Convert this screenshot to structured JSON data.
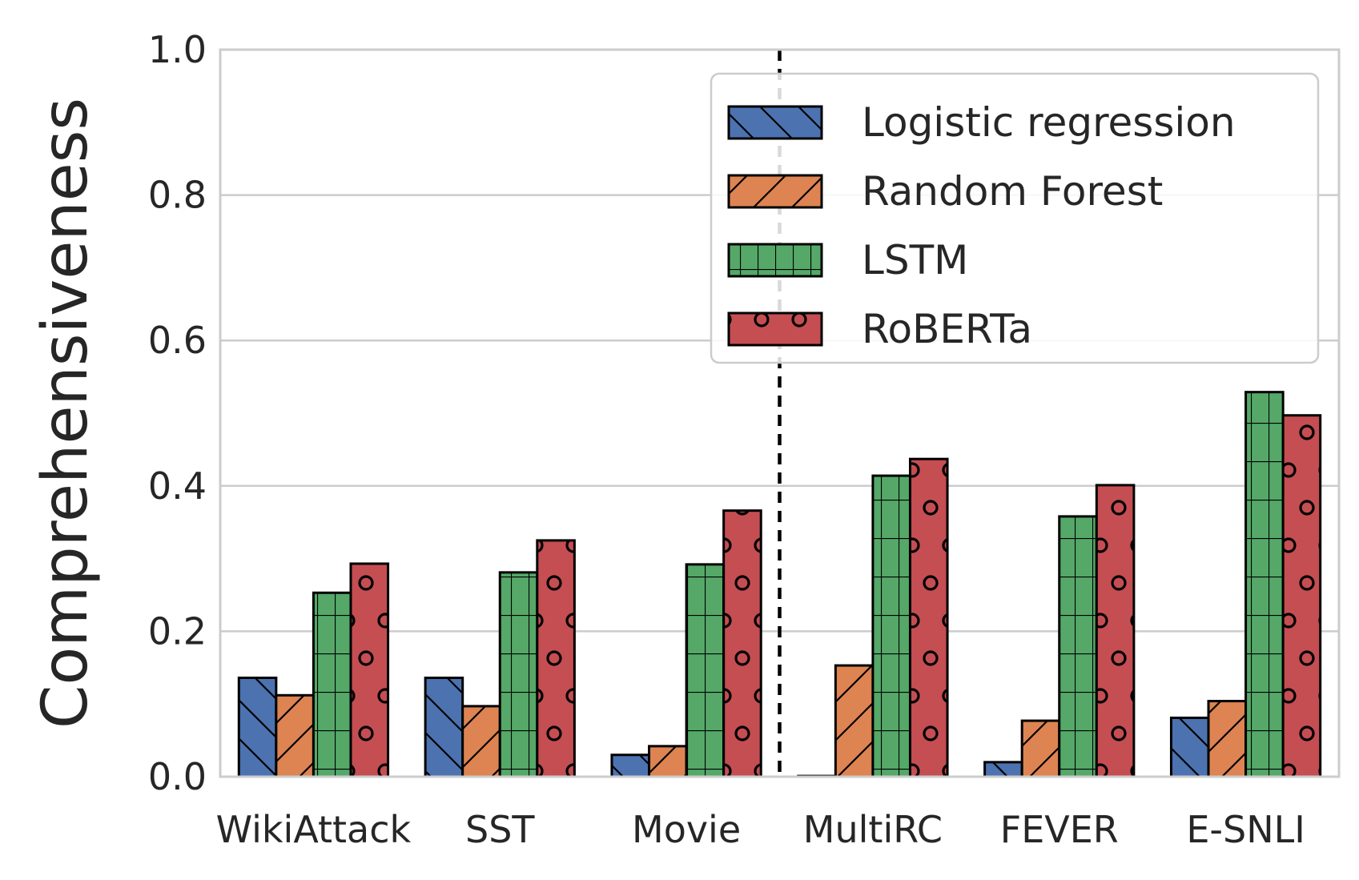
{
  "chart_data": {
    "type": "bar",
    "title": "",
    "xlabel": "",
    "ylabel": "Comprehensiveness",
    "ylim": [
      0,
      1.0
    ],
    "yticks": [
      "0.0",
      "0.2",
      "0.4",
      "0.6",
      "0.8",
      "1.0"
    ],
    "grid": true,
    "legend_position": "top-right",
    "categories": [
      "WikiAttack",
      "SST",
      "Movie",
      "MultiRC",
      "FEVER",
      "E-SNLI"
    ],
    "separator_after_category": "Movie",
    "series": [
      {
        "name": "Logistic regression",
        "color": "#4c72b0",
        "pattern": "backslash",
        "values": [
          0.136,
          0.136,
          0.03,
          0.001,
          0.02,
          0.081
        ]
      },
      {
        "name": "Random Forest",
        "color": "#dd8452",
        "pattern": "slash",
        "values": [
          0.112,
          0.097,
          0.042,
          0.153,
          0.077,
          0.104
        ]
      },
      {
        "name": "LSTM",
        "color": "#55a868",
        "pattern": "grid",
        "values": [
          0.253,
          0.281,
          0.292,
          0.414,
          0.358,
          0.529
        ]
      },
      {
        "name": "RoBERTa",
        "color": "#c44e52",
        "pattern": "circles",
        "values": [
          0.293,
          0.325,
          0.366,
          0.437,
          0.401,
          0.497
        ]
      }
    ]
  }
}
